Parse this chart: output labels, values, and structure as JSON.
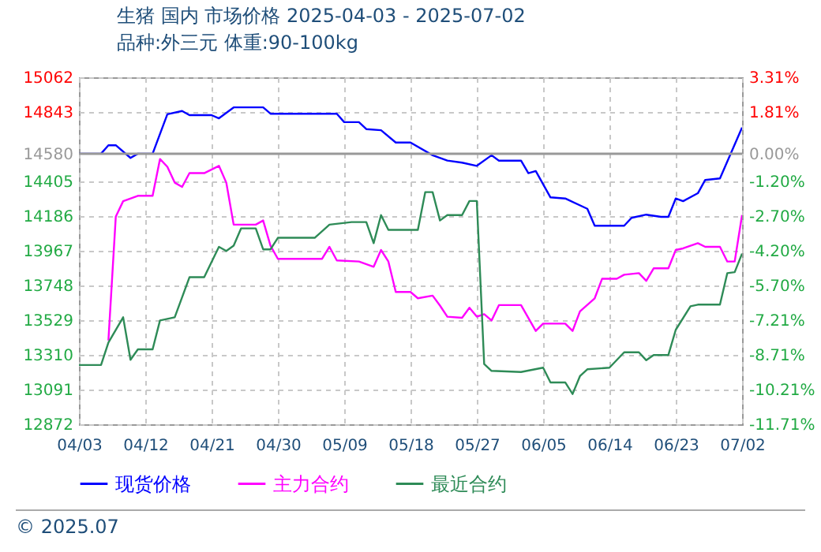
{
  "chart_data": {
    "type": "line",
    "title": "生猪 国内 市场价格 2025-04-03 - 2025-07-02",
    "subtitle": "品种:外三元 体重:90-100kg",
    "xlim": [
      "2025-04-03",
      "2025-07-02"
    ],
    "xticks": [
      {
        "value": "2025-04-03",
        "label": "04/03"
      },
      {
        "value": "2025-04-12",
        "label": "04/12"
      },
      {
        "value": "2025-04-21",
        "label": "04/21"
      },
      {
        "value": "2025-04-30",
        "label": "04/30"
      },
      {
        "value": "2025-05-09",
        "label": "05/09"
      },
      {
        "value": "2025-05-18",
        "label": "05/18"
      },
      {
        "value": "2025-05-27",
        "label": "05/27"
      },
      {
        "value": "2025-06-05",
        "label": "06/05"
      },
      {
        "value": "2025-06-14",
        "label": "06/14"
      },
      {
        "value": "2025-06-23",
        "label": "06/23"
      },
      {
        "value": "2025-07-02",
        "label": "07/02"
      }
    ],
    "ylim": [
      12872,
      15062
    ],
    "yticks": [
      12872,
      13091,
      13310,
      13529,
      13748,
      13967,
      14186,
      14405,
      14580,
      14843,
      15062
    ],
    "y2lim": [
      -11.71,
      3.31
    ],
    "y2ticks": [
      {
        "value": -11.71,
        "label": "-11.71%"
      },
      {
        "value": -10.21,
        "label": "-10.21%"
      },
      {
        "value": -8.71,
        "label": "-8.71%"
      },
      {
        "value": -7.21,
        "label": "-7.21%"
      },
      {
        "value": -5.7,
        "label": "-5.70%"
      },
      {
        "value": -4.2,
        "label": "-4.20%"
      },
      {
        "value": -2.7,
        "label": "-2.70%"
      },
      {
        "value": -1.2,
        "label": "-1.20%"
      },
      {
        "value": 0,
        "label": "0.00%"
      },
      {
        "value": 1.81,
        "label": "1.81%"
      },
      {
        "value": 3.31,
        "label": "3.31%"
      }
    ],
    "ref_lines": [
      {
        "axis": "y2",
        "value": 0,
        "color": "#999999"
      }
    ],
    "grid": true,
    "legend": "bottom",
    "annotations": [
      "© 2025.07"
    ],
    "series": [
      {
        "name": "现货价格",
        "color": "#0000ff",
        "x": [
          "2025-04-03",
          "2025-04-06",
          "2025-04-07",
          "2025-04-08",
          "2025-04-10",
          "2025-04-11",
          "2025-04-13",
          "2025-04-15",
          "2025-04-17",
          "2025-04-18",
          "2025-04-21",
          "2025-04-22",
          "2025-04-24",
          "2025-04-28",
          "2025-04-29",
          "2025-05-05",
          "2025-05-08",
          "2025-05-09",
          "2025-05-11",
          "2025-05-12",
          "2025-05-14",
          "2025-05-16",
          "2025-05-18",
          "2025-05-21",
          "2025-05-23",
          "2025-05-25",
          "2025-05-27",
          "2025-05-29",
          "2025-05-30",
          "2025-06-02",
          "2025-06-03",
          "2025-06-04",
          "2025-06-06",
          "2025-06-08",
          "2025-06-11",
          "2025-06-12",
          "2025-06-16",
          "2025-06-17",
          "2025-06-19",
          "2025-06-21",
          "2025-06-22",
          "2025-06-23",
          "2025-06-24",
          "2025-06-26",
          "2025-06-27",
          "2025-06-29",
          "2025-07-02"
        ],
        "values": [
          14580,
          14580,
          14633,
          14633,
          14553,
          14580,
          14580,
          14829,
          14849,
          14823,
          14823,
          14803,
          14872,
          14872,
          14832,
          14832,
          14832,
          14779,
          14779,
          14735,
          14728,
          14650,
          14650,
          14570,
          14536,
          14523,
          14503,
          14570,
          14536,
          14536,
          14457,
          14470,
          14304,
          14297,
          14232,
          14125,
          14125,
          14175,
          14195,
          14181,
          14181,
          14297,
          14280,
          14330,
          14414,
          14424,
          14745
        ]
      },
      {
        "name": "主力合约",
        "color": "#ff00ff",
        "x": [
          "2025-04-07",
          "2025-04-08",
          "2025-04-09",
          "2025-04-11",
          "2025-04-13",
          "2025-04-14",
          "2025-04-15",
          "2025-04-16",
          "2025-04-17",
          "2025-04-18",
          "2025-04-20",
          "2025-04-22",
          "2025-04-23",
          "2025-04-24",
          "2025-04-27",
          "2025-04-28",
          "2025-04-29",
          "2025-04-30",
          "2025-05-06",
          "2025-05-07",
          "2025-05-08",
          "2025-05-11",
          "2025-05-13",
          "2025-05-14",
          "2025-05-15",
          "2025-05-16",
          "2025-05-18",
          "2025-05-19",
          "2025-05-21",
          "2025-05-22",
          "2025-05-23",
          "2025-05-25",
          "2025-05-26",
          "2025-05-27",
          "2025-05-28",
          "2025-05-29",
          "2025-05-30",
          "2025-06-02",
          "2025-06-04",
          "2025-06-05",
          "2025-06-08",
          "2025-06-09",
          "2025-06-10",
          "2025-06-12",
          "2025-06-13",
          "2025-06-15",
          "2025-06-16",
          "2025-06-18",
          "2025-06-19",
          "2025-06-20",
          "2025-06-22",
          "2025-06-23",
          "2025-06-24",
          "2025-06-26",
          "2025-06-27",
          "2025-06-29",
          "2025-06-30",
          "2025-07-01",
          "2025-07-02"
        ],
        "values": [
          13401,
          14182,
          14280,
          14314,
          14314,
          14546,
          14497,
          14397,
          14370,
          14457,
          14457,
          14503,
          14397,
          14132,
          14132,
          14158,
          13999,
          13916,
          13916,
          13992,
          13906,
          13899,
          13866,
          13972,
          13899,
          13707,
          13707,
          13667,
          13684,
          13621,
          13551,
          13544,
          13607,
          13551,
          13567,
          13527,
          13624,
          13624,
          13461,
          13507,
          13507,
          13461,
          13584,
          13667,
          13790,
          13790,
          13816,
          13826,
          13777,
          13856,
          13856,
          13972,
          13982,
          14015,
          13992,
          13992,
          13899,
          13899,
          14192
        ]
      },
      {
        "name": "最近合约",
        "color": "#2e8b57",
        "x": [
          "2025-04-03",
          "2025-04-06",
          "2025-04-07",
          "2025-04-09",
          "2025-04-10",
          "2025-04-11",
          "2025-04-13",
          "2025-04-14",
          "2025-04-16",
          "2025-04-18",
          "2025-04-20",
          "2025-04-22",
          "2025-04-23",
          "2025-04-24",
          "2025-04-25",
          "2025-04-27",
          "2025-04-28",
          "2025-04-29",
          "2025-04-30",
          "2025-05-05",
          "2025-05-07",
          "2025-05-10",
          "2025-05-12",
          "2025-05-13",
          "2025-05-14",
          "2025-05-15",
          "2025-05-19",
          "2025-05-20",
          "2025-05-21",
          "2025-05-22",
          "2025-05-23",
          "2025-05-25",
          "2025-05-26",
          "2025-05-27",
          "2025-05-28",
          "2025-05-29",
          "2025-06-02",
          "2025-06-05",
          "2025-06-06",
          "2025-06-08",
          "2025-06-09",
          "2025-06-10",
          "2025-06-11",
          "2025-06-14",
          "2025-06-16",
          "2025-06-18",
          "2025-06-19",
          "2025-06-20",
          "2025-06-22",
          "2025-06-23",
          "2025-06-25",
          "2025-06-26",
          "2025-06-29",
          "2025-06-30",
          "2025-07-01",
          "2025-07-02"
        ],
        "values": [
          13246,
          13246,
          13388,
          13547,
          13279,
          13345,
          13345,
          13527,
          13547,
          13800,
          13800,
          13992,
          13966,
          13999,
          14108,
          14108,
          13976,
          13976,
          14049,
          14049,
          14132,
          14148,
          14148,
          14015,
          14192,
          14099,
          14099,
          14337,
          14337,
          14158,
          14192,
          14192,
          14281,
          14281,
          13252,
          13209,
          13202,
          13229,
          13136,
          13136,
          13063,
          13176,
          13219,
          13229,
          13326,
          13326,
          13276,
          13309,
          13309,
          13468,
          13617,
          13627,
          13627,
          13826,
          13832,
          13949
        ]
      }
    ]
  }
}
